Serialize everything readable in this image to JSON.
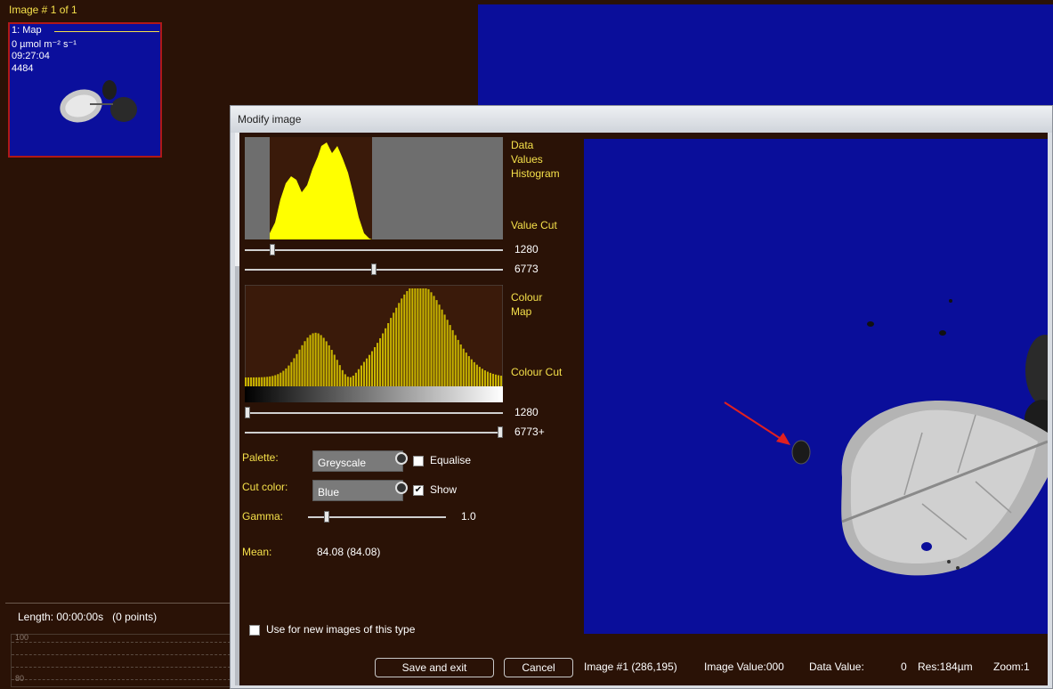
{
  "header": {
    "image_counter": "Image # 1 of 1"
  },
  "thumbnail": {
    "title": "1: Map",
    "unit": "0 µmol m⁻² s⁻¹",
    "time": "09:27:04",
    "count": "4484"
  },
  "bottom_panel": {
    "length_label": "Length:",
    "length_value": "00:00:00s",
    "points": "(0 points)",
    "graph_ticks": [
      "100",
      "80"
    ]
  },
  "dialog": {
    "title": "Modify image",
    "histogram_label": [
      "Data",
      "Values",
      "Histogram"
    ],
    "value_cut_label": "Value Cut",
    "value_cut_low": "1280",
    "value_cut_high": "6773",
    "value_cut_low_frac": 0.1,
    "value_cut_high_frac": 0.5,
    "colour_map_label": [
      "Colour",
      "Map"
    ],
    "colour_cut_label": "Colour Cut",
    "colour_cut_low": "1280",
    "colour_cut_high": "6773+",
    "colour_cut_low_frac": 0.0,
    "colour_cut_high_frac": 1.0,
    "palette_label": "Palette:",
    "palette_value": "Greyscale",
    "equalise_label": "Equalise",
    "equalise_checked": false,
    "cut_color_label": "Cut color:",
    "cut_color_value": "Blue",
    "show_label": "Show",
    "show_checked": true,
    "gamma_label": "Gamma:",
    "gamma_value": "1.0",
    "gamma_frac": 0.12,
    "mean_label": "Mean:",
    "mean_value": "84.08 (84.08)",
    "use_new_label": "Use for new images of this type",
    "use_new_checked": false,
    "save_button": "Save and exit",
    "cancel_button": "Cancel"
  },
  "status_bar": {
    "image": "Image #1 (286,195)",
    "image_value": "Image Value:000",
    "data_value_label": "Data Value:",
    "data_value": "0",
    "res": "Res:184µm",
    "zoom": "Zoom:1"
  },
  "colors": {
    "background": "#2a1206",
    "image_blue": "#0a0e9a",
    "label_yellow": "#f5e04a",
    "histogram_yellow": "#ffff00",
    "thumb_border": "#b01818",
    "annotation_red": "#e02020"
  }
}
